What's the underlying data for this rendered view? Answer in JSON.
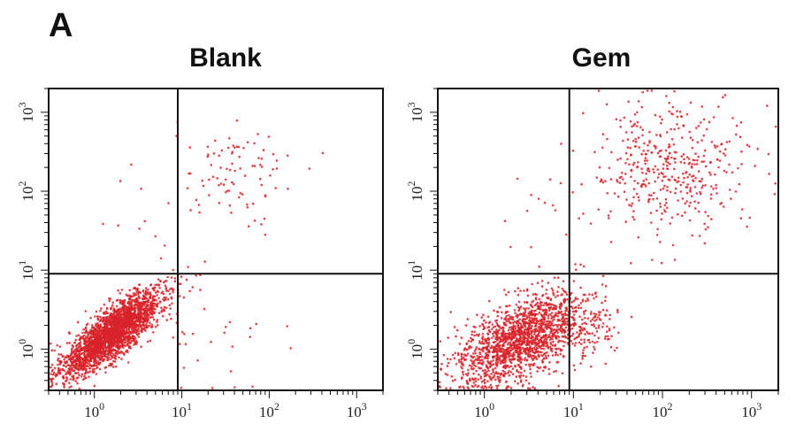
{
  "figure": {
    "panel_letter": "A"
  },
  "chart_data": [
    {
      "type": "scatter",
      "title": "Blank",
      "xlabel": "",
      "ylabel": "",
      "xscale": "log",
      "yscale": "log",
      "xlim": [
        0.3,
        2000
      ],
      "ylim": [
        0.3,
        2000
      ],
      "x_ticks": [
        {
          "base": "10",
          "exp": "0",
          "value": 1
        },
        {
          "base": "10",
          "exp": "1",
          "value": 10
        },
        {
          "base": "10",
          "exp": "2",
          "value": 100
        },
        {
          "base": "10",
          "exp": "3",
          "value": 1000
        }
      ],
      "y_ticks": [
        {
          "base": "10",
          "exp": "0",
          "value": 1
        },
        {
          "base": "10",
          "exp": "1",
          "value": 10
        },
        {
          "base": "10",
          "exp": "2",
          "value": 100
        },
        {
          "base": "10",
          "exp": "3",
          "value": 1000
        }
      ],
      "gates": {
        "x": 9.0,
        "y": 9.0
      },
      "point_color": "#d8232a",
      "clusters": [
        {
          "region": "lower-left",
          "center": [
            1.6,
            1.6
          ],
          "spread_decades": 0.28,
          "approx_points": 2600
        },
        {
          "region": "upper-right",
          "center": [
            40,
            150
          ],
          "spread_decades": 0.35,
          "approx_points": 90
        },
        {
          "region": "lower-right",
          "center": [
            25,
            1.2
          ],
          "spread_decades": 0.35,
          "approx_points": 25
        },
        {
          "region": "upper-left",
          "center": [
            2.5,
            40
          ],
          "spread_decades": 0.35,
          "approx_points": 12
        }
      ]
    },
    {
      "type": "scatter",
      "title": "Gem",
      "xlabel": "",
      "ylabel": "",
      "xscale": "log",
      "yscale": "log",
      "xlim": [
        0.3,
        2000
      ],
      "ylim": [
        0.3,
        2000
      ],
      "x_ticks": [
        {
          "base": "10",
          "exp": "0",
          "value": 1
        },
        {
          "base": "10",
          "exp": "1",
          "value": 10
        },
        {
          "base": "10",
          "exp": "2",
          "value": 100
        },
        {
          "base": "10",
          "exp": "3",
          "value": 1000
        }
      ],
      "y_ticks": [
        {
          "base": "10",
          "exp": "0",
          "value": 1
        },
        {
          "base": "10",
          "exp": "1",
          "value": 10
        },
        {
          "base": "10",
          "exp": "2",
          "value": 100
        },
        {
          "base": "10",
          "exp": "3",
          "value": 1000
        }
      ],
      "gates": {
        "x": 9.0,
        "y": 9.0
      },
      "point_color": "#d8232a",
      "clusters": [
        {
          "region": "lower-left",
          "center": [
            2.5,
            1.3
          ],
          "spread_decades": 0.35,
          "approx_points": 1600
        },
        {
          "region": "upper-right",
          "center": [
            120,
            200
          ],
          "spread_decades": 0.45,
          "approx_points": 420
        },
        {
          "region": "lower-right",
          "center": [
            14,
            2.0
          ],
          "spread_decades": 0.2,
          "approx_points": 140
        },
        {
          "region": "upper-left",
          "center": [
            5,
            60
          ],
          "spread_decades": 0.3,
          "approx_points": 15
        }
      ]
    }
  ]
}
